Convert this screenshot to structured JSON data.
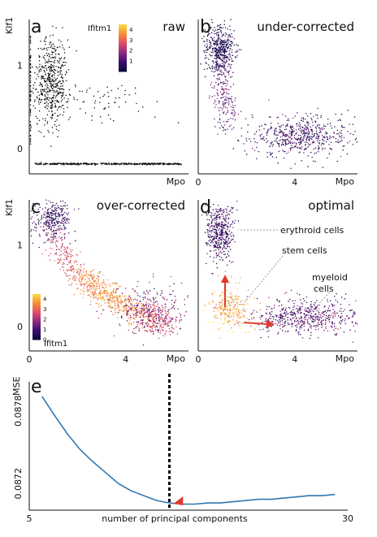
{
  "colors": {
    "point_black": "#111111",
    "line_blue": "#2f77b4",
    "threshold_line": "#000000",
    "arrow_red": "#e03a2d",
    "annotation_gray": "#9a9a9a",
    "colormap": [
      "#0b0b3b",
      "#3b0f6f",
      "#8c2981",
      "#dd4a68",
      "#f6883a",
      "#fbd53f"
    ]
  },
  "chart_data": [
    {
      "type": "scatter",
      "panel": "a",
      "title": "raw",
      "xlabel": "Mpo",
      "ylabel": "Klf1",
      "xlim": [
        0,
        6.6
      ],
      "ylim": [
        -0.3,
        1.55
      ],
      "xticks": [],
      "yticks": [
        {
          "value": 0,
          "label": "0"
        },
        {
          "value": 1,
          "label": "1"
        }
      ],
      "color": "#111111",
      "clusters": [
        {
          "name": "erythroid",
          "cx": 0.9,
          "cy": 0.8,
          "sx": 0.35,
          "sy": 0.28,
          "n": 500
        },
        {
          "name": "myeloid",
          "cx": 3.0,
          "cy": 0.55,
          "sx": 1.4,
          "sy": 0.15,
          "n": 70
        },
        {
          "name": "zero-Klf1",
          "y": -0.18,
          "xmin": 0.2,
          "xmax": 6.3,
          "n": 400
        },
        {
          "name": "zero-Mpo",
          "x": 0.05,
          "ymin": 0.0,
          "ymax": 1.35,
          "n": 60
        }
      ],
      "legend": {
        "title": "Ifitm1",
        "ticks": [
          "4",
          "3",
          "2",
          "1"
        ],
        "range": [
          0,
          4.5
        ],
        "placement": "top-center"
      }
    },
    {
      "type": "scatter",
      "panel": "b",
      "title": "under-corrected",
      "xlabel": "Mpo",
      "ylabel": "",
      "xlim": [
        0,
        6.6
      ],
      "ylim": [
        -0.3,
        1.55
      ],
      "xticks": [
        {
          "value": 0,
          "label": "0"
        },
        {
          "value": 4,
          "label": "4"
        }
      ],
      "yticks": [],
      "color_by": "Ifitm1",
      "clusters": [
        {
          "name": "erythroid",
          "cx": 0.9,
          "cy": 1.2,
          "sx": 0.3,
          "sy": 0.14,
          "n": 420,
          "c": 0.3
        },
        {
          "name": "arm",
          "x0": 0.9,
          "y0": 1.0,
          "x1": 1.2,
          "y1": 0.3,
          "n": 200,
          "c": 1.5
        },
        {
          "name": "myeloid",
          "cx": 4.2,
          "cy": 0.15,
          "sx": 1.1,
          "sy": 0.12,
          "n": 550,
          "c": 0.8
        }
      ]
    },
    {
      "type": "scatter",
      "panel": "c",
      "title": "over-corrected",
      "xlabel": "Mpo",
      "ylabel": "Klf1",
      "xlim": [
        0,
        6.6
      ],
      "ylim": [
        -0.3,
        1.55
      ],
      "xticks": [
        {
          "value": 0,
          "label": "0"
        },
        {
          "value": 4,
          "label": "4"
        }
      ],
      "yticks": [
        {
          "value": 0,
          "label": "0"
        },
        {
          "value": 1,
          "label": "1"
        }
      ],
      "color_by": "Ifitm1",
      "clusters": [
        {
          "name": "erythroid",
          "cx": 1.0,
          "cy": 1.3,
          "sx": 0.35,
          "sy": 0.12,
          "n": 300,
          "c": 0.8
        },
        {
          "name": "curve",
          "x0": 1.0,
          "y0": 1.2,
          "x1": 5.8,
          "y1": 0.0,
          "n": 900,
          "c": 3.8
        },
        {
          "name": "myeloid",
          "cx": 5.0,
          "cy": 0.2,
          "sx": 0.7,
          "sy": 0.15,
          "n": 300,
          "c": 1.6
        }
      ],
      "legend": {
        "title": "Ifitm1",
        "ticks": [
          "4",
          "3",
          "2",
          "1",
          "0"
        ],
        "range": [
          0,
          4.5
        ],
        "placement": "bottom-left"
      }
    },
    {
      "type": "scatter",
      "panel": "d",
      "title": "optimal",
      "xlabel": "Mpo",
      "ylabel": "",
      "xlim": [
        0,
        6.6
      ],
      "ylim": [
        -0.3,
        1.55
      ],
      "xticks": [
        {
          "value": 0,
          "label": "0"
        },
        {
          "value": 4,
          "label": "4"
        }
      ],
      "yticks": [],
      "color_by": "Ifitm1",
      "clusters": [
        {
          "name": "erythroid",
          "cx": 0.9,
          "cy": 1.15,
          "sx": 0.3,
          "sy": 0.18,
          "n": 420,
          "c": 0.8
        },
        {
          "name": "stem",
          "cx": 1.3,
          "cy": 0.22,
          "sx": 0.4,
          "sy": 0.12,
          "n": 250,
          "c": 4.0
        },
        {
          "name": "myeloid",
          "cx": 4.5,
          "cy": 0.12,
          "sx": 1.0,
          "sy": 0.1,
          "n": 550,
          "c": 1.2
        }
      ],
      "annotations": [
        "erythroid cells",
        "stem cells",
        "myeloid",
        "cells"
      ]
    },
    {
      "type": "line",
      "panel": "e",
      "title": "",
      "xlabel": "number of principal components",
      "ylabel": "MSE",
      "xlim": [
        5,
        30
      ],
      "ylim": [
        0.08698,
        0.08804
      ],
      "xticks": [
        {
          "value": 5,
          "label": "5"
        },
        {
          "value": 30,
          "label": "30"
        }
      ],
      "yticks": [
        {
          "value": 0.0878,
          "label": "0.0878"
        },
        {
          "value": 0.0872,
          "label": "0.0872"
        }
      ],
      "x": [
        6,
        7,
        8,
        9,
        10,
        11,
        12,
        13,
        14,
        15,
        16,
        17,
        18,
        19,
        20,
        21,
        22,
        23,
        24,
        25,
        26,
        27,
        28,
        29
      ],
      "series": [
        {
          "values": [
            0.08792,
            0.08776,
            0.08761,
            0.08748,
            0.08738,
            0.08729,
            0.0872,
            0.08714,
            0.0871,
            0.08706,
            0.08704,
            0.08703,
            0.08703,
            0.08704,
            0.08704,
            0.08705,
            0.08706,
            0.08707,
            0.08707,
            0.08708,
            0.08709,
            0.0871,
            0.0871,
            0.08711
          ]
        }
      ],
      "vline": 16,
      "marker_x": 16.5
    }
  ]
}
